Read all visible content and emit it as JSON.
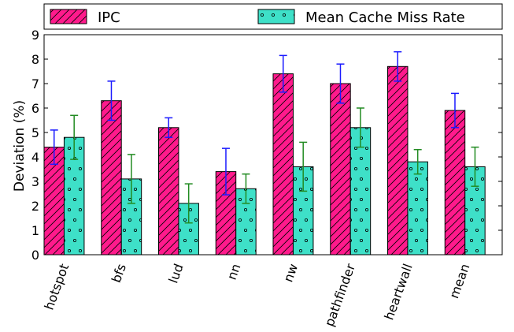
{
  "chart_data": {
    "type": "bar",
    "title": "",
    "xlabel": "",
    "ylabel": "Deviation (%)",
    "ylim": [
      0,
      9
    ],
    "yticks": [
      0,
      1,
      2,
      3,
      4,
      5,
      6,
      7,
      8,
      9
    ],
    "grid": false,
    "legend_position": "top",
    "categories": [
      "hotspot",
      "bfs",
      "lud",
      "nn",
      "nw",
      "pathfinder",
      "heartwall",
      "mean"
    ],
    "series": [
      {
        "name": "IPC",
        "values": [
          4.4,
          6.3,
          5.2,
          3.4,
          7.4,
          7.0,
          7.7,
          5.9
        ],
        "error": [
          0.7,
          0.8,
          0.4,
          0.95,
          0.75,
          0.8,
          0.6,
          0.7
        ],
        "color": "#ff1a8c",
        "error_color": "#1a1aff",
        "pattern": "diagonal-hatch"
      },
      {
        "name": "Mean Cache Miss Rate",
        "values": [
          4.8,
          3.1,
          2.1,
          2.7,
          3.6,
          5.2,
          3.8,
          3.6
        ],
        "error": [
          0.9,
          1.0,
          0.8,
          0.6,
          1.0,
          0.8,
          0.5,
          0.8
        ],
        "color": "#3ee0c8",
        "error_color": "#228b22",
        "pattern": "dots"
      }
    ]
  }
}
